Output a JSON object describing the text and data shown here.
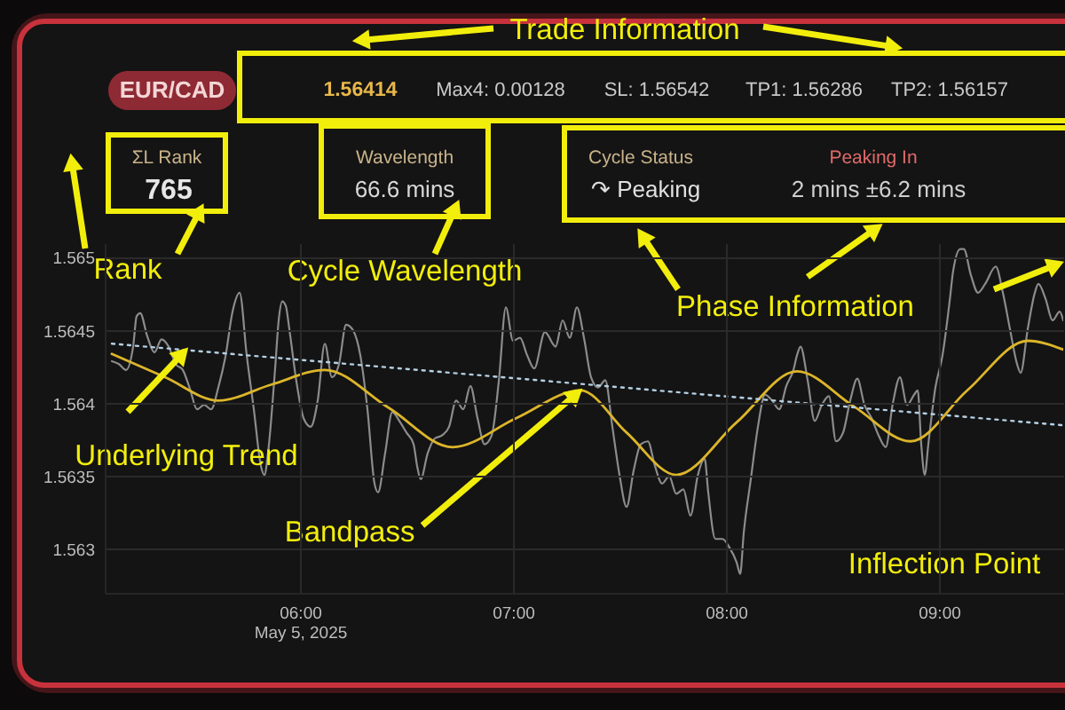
{
  "chart_data": {
    "type": "line",
    "title": "EUR/CAD",
    "annotations": [
      "Trade Information",
      "1.56414",
      "Max4: 0.00128",
      "SL: 1.56542",
      "TP1: 1.56286",
      "TP2: 1.56157",
      "ΣL Rank",
      "765",
      "Wavelength",
      "66.6 mins",
      "Cycle Status",
      "↷ Peaking",
      "Peaking In",
      "2 mins ±6.2 mins",
      "Rank",
      "Cycle Wavelength",
      "Phase Information",
      {
        "text": "Underlying Trend",
        "x": "2025-05-05T05:28",
        "y": 1.56437
      },
      {
        "text": "Bandpass",
        "x": "2025-05-05T07:19",
        "y": 1.56409
      },
      "Inflection Point"
    ],
    "series": [
      {
        "color": "#8c8c8c",
        "x": [
          "2025-05-05T05:07",
          "2025-05-05T05:09",
          "2025-05-05T05:11",
          "2025-05-05T05:13",
          "2025-05-05T05:14",
          "2025-05-05T05:15",
          "2025-05-05T05:17",
          "2025-05-05T05:19",
          "2025-05-05T05:21",
          "2025-05-05T05:23",
          "2025-05-05T05:25",
          "2025-05-05T05:27",
          "2025-05-05T05:29",
          "2025-05-05T05:31",
          "2025-05-05T05:33",
          "2025-05-05T05:35",
          "2025-05-05T05:37",
          "2025-05-05T05:39",
          "2025-05-05T05:41",
          "2025-05-05T05:43",
          "2025-05-05T05:45",
          "2025-05-05T05:47",
          "2025-05-05T05:49",
          "2025-05-05T05:50",
          "2025-05-05T05:51",
          "2025-05-05T05:53",
          "2025-05-05T05:54",
          "2025-05-05T05:55",
          "2025-05-05T05:56",
          "2025-05-05T05:57",
          "2025-05-05T05:59",
          "2025-05-05T06:01",
          "2025-05-05T06:03",
          "2025-05-05T06:05",
          "2025-05-05T06:07",
          "2025-05-05T06:09",
          "2025-05-05T06:11",
          "2025-05-05T06:13",
          "2025-05-05T06:15",
          "2025-05-05T06:17",
          "2025-05-05T06:19",
          "2025-05-05T06:21",
          "2025-05-05T06:22",
          "2025-05-05T06:24",
          "2025-05-05T06:26",
          "2025-05-05T06:28",
          "2025-05-05T06:30",
          "2025-05-05T06:32",
          "2025-05-05T06:33",
          "2025-05-05T06:34",
          "2025-05-05T06:36",
          "2025-05-05T06:38",
          "2025-05-05T06:40",
          "2025-05-05T06:42",
          "2025-05-05T06:44",
          "2025-05-05T06:46",
          "2025-05-05T06:48",
          "2025-05-05T06:50",
          "2025-05-05T06:52",
          "2025-05-05T06:54",
          "2025-05-05T06:56",
          "2025-05-05T06:58",
          "2025-05-05T07:00",
          "2025-05-05T07:02",
          "2025-05-05T07:04",
          "2025-05-05T07:06",
          "2025-05-05T07:09",
          "2025-05-05T07:12",
          "2025-05-05T07:14",
          "2025-05-05T07:16",
          "2025-05-05T07:18",
          "2025-05-05T07:20",
          "2025-05-05T07:22",
          "2025-05-05T07:24",
          "2025-05-05T07:26",
          "2025-05-05T07:28",
          "2025-05-05T07:30",
          "2025-05-05T07:32",
          "2025-05-05T07:34",
          "2025-05-05T07:36",
          "2025-05-05T07:38",
          "2025-05-05T07:40",
          "2025-05-05T07:42",
          "2025-05-05T07:44",
          "2025-05-05T07:46",
          "2025-05-05T07:48",
          "2025-05-05T07:50",
          "2025-05-05T07:52",
          "2025-05-05T07:54",
          "2025-05-05T07:55",
          "2025-05-05T07:57",
          "2025-05-05T07:59",
          "2025-05-05T08:01",
          "2025-05-05T08:03",
          "2025-05-05T08:04",
          "2025-05-05T08:05",
          "2025-05-05T08:07",
          "2025-05-05T08:09",
          "2025-05-05T08:11",
          "2025-05-05T08:13",
          "2025-05-05T08:15",
          "2025-05-05T08:17",
          "2025-05-05T08:19",
          "2025-05-05T08:20",
          "2025-05-05T08:21",
          "2025-05-05T08:23",
          "2025-05-05T08:25",
          "2025-05-05T08:27",
          "2025-05-05T08:29",
          "2025-05-05T08:31",
          "2025-05-05T08:33",
          "2025-05-05T08:35",
          "2025-05-05T08:37",
          "2025-05-05T08:39",
          "2025-05-05T08:41",
          "2025-05-05T08:43",
          "2025-05-05T08:45",
          "2025-05-05T08:47",
          "2025-05-05T08:49",
          "2025-05-05T08:51",
          "2025-05-05T08:53",
          "2025-05-05T08:54",
          "2025-05-05T08:55",
          "2025-05-05T08:56",
          "2025-05-05T08:57",
          "2025-05-05T08:59",
          "2025-05-05T09:01",
          "2025-05-05T09:03",
          "2025-05-05T09:04",
          "2025-05-05T09:06",
          "2025-05-05T09:07",
          "2025-05-05T09:09",
          "2025-05-05T09:11",
          "2025-05-05T09:13",
          "2025-05-05T09:16",
          "2025-05-05T09:18",
          "2025-05-05T09:20",
          "2025-05-05T09:22",
          "2025-05-05T09:23",
          "2025-05-05T09:25",
          "2025-05-05T09:27",
          "2025-05-05T09:28",
          "2025-05-05T09:30",
          "2025-05-05T09:32",
          "2025-05-05T09:34",
          "2025-05-05T09:35"
        ],
        "values": [
          1.56429,
          1.56427,
          1.56423,
          1.56439,
          1.5646,
          1.56462,
          1.56446,
          1.56435,
          1.56444,
          1.56439,
          1.56427,
          1.56423,
          1.5641,
          1.56396,
          1.56399,
          1.56396,
          1.56411,
          1.56432,
          1.56463,
          1.56476,
          1.56433,
          1.56396,
          1.56357,
          1.56351,
          1.56366,
          1.56424,
          1.56457,
          1.5647,
          1.56467,
          1.56451,
          1.56415,
          1.5639,
          1.56384,
          1.56402,
          1.56441,
          1.56418,
          1.56427,
          1.56454,
          1.5645,
          1.56433,
          1.56396,
          1.56345,
          1.56339,
          1.56366,
          1.56394,
          1.56388,
          1.5638,
          1.56372,
          1.56357,
          1.56348,
          1.56366,
          1.56376,
          1.56378,
          1.56384,
          1.56402,
          1.56396,
          1.56412,
          1.5639,
          1.56372,
          1.56378,
          1.56415,
          1.56466,
          1.56443,
          1.56445,
          1.56433,
          1.56424,
          1.56449,
          1.56439,
          1.56457,
          1.56445,
          1.56466,
          1.56445,
          1.56418,
          1.56411,
          1.56416,
          1.56384,
          1.56351,
          1.56329,
          1.56354,
          1.56372,
          1.56374,
          1.56357,
          1.56345,
          1.5635,
          1.56338,
          1.56341,
          1.56323,
          1.5635,
          1.56362,
          1.56339,
          1.56307,
          1.56307,
          1.56301,
          1.56291,
          1.56283,
          1.56311,
          1.56348,
          1.56384,
          1.56406,
          1.56402,
          1.56396,
          1.56412,
          1.56423,
          1.56433,
          1.56439,
          1.56416,
          1.56388,
          1.56399,
          1.56405,
          1.56374,
          1.5638,
          1.56402,
          1.56417,
          1.56399,
          1.5639,
          1.56378,
          1.5637,
          1.564,
          1.56418,
          1.56399,
          1.56406,
          1.56409,
          1.56372,
          1.56351,
          1.56372,
          1.56411,
          1.56433,
          1.5647,
          1.56491,
          1.56506,
          1.56506,
          1.56488,
          1.56476,
          1.56482,
          1.56494,
          1.56476,
          1.56451,
          1.56427,
          1.56421,
          1.56451,
          1.56476,
          1.56482,
          1.56472,
          1.56457,
          1.56463,
          1.56457
        ]
      },
      {
        "color": "#dcb52a",
        "x": [
          "2025-05-05T05:07",
          "2025-05-05T05:22",
          "2025-05-05T05:37",
          "2025-05-05T05:52",
          "2025-05-05T06:07",
          "2025-05-05T06:25",
          "2025-05-05T06:43",
          "2025-05-05T07:01",
          "2025-05-05T07:19",
          "2025-05-05T07:32",
          "2025-05-05T07:46",
          "2025-05-05T08:03",
          "2025-05-05T08:20",
          "2025-05-05T08:36",
          "2025-05-05T08:52",
          "2025-05-05T09:08",
          "2025-05-05T09:25",
          "2025-05-05T09:35"
        ],
        "values": [
          1.56434,
          1.56418,
          1.56402,
          1.56413,
          1.56423,
          1.56397,
          1.5637,
          1.5639,
          1.56409,
          1.5638,
          1.56351,
          1.56387,
          1.56422,
          1.56398,
          1.56374,
          1.56409,
          1.56443,
          1.56437
        ]
      },
      {
        "color": "#b4d0e4",
        "line_style": "dotted",
        "x": [
          "2025-05-05T05:07",
          "2025-05-05T09:35"
        ],
        "values": [
          1.56441,
          1.56385
        ]
      }
    ],
    "xlim": [
      "2025-05-05T05:05",
      "2025-05-05T09:35"
    ],
    "xticks": [
      {
        "value": "2025-05-05T06:00",
        "label": "06:00\nMay 5, 2025"
      },
      {
        "value": "2025-05-05T07:00",
        "label": "07:00"
      },
      {
        "value": "2025-05-05T08:00",
        "label": "08:00"
      },
      {
        "value": "2025-05-05T09:00",
        "label": "09:00"
      }
    ],
    "ylim": [
      1.5627,
      1.5651
    ],
    "yticks": [
      1.563,
      1.5635,
      1.564,
      1.5645,
      1.565
    ],
    "grid": true
  }
}
